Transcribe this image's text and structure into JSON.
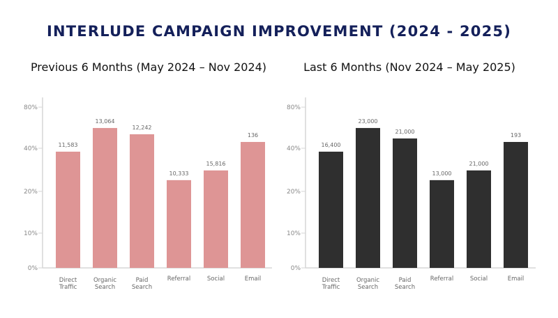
{
  "title": "INTERLUDE CAMPAIGN IMPROVEMENT (2024 - 2025)",
  "chart_data": [
    {
      "type": "bar",
      "title": "Previous 6 Months (May 2024 – Nov 2024)",
      "categories": [
        "Direct Traffic",
        "Organic Search",
        "Paid Search",
        "Referral",
        "Social",
        "Email"
      ],
      "values": [
        38.4,
        59.7,
        53.6,
        25.2,
        29.7,
        46.1
      ],
      "data_labels": [
        "11,583",
        "13,064",
        "12,242",
        "10,333",
        "15,816",
        "136"
      ],
      "yticks": [
        "0%",
        "10%",
        "20%",
        "40%",
        "80%"
      ],
      "ytick_values": [
        0,
        10,
        20,
        40,
        80
      ],
      "ylim": [
        0,
        80
      ],
      "grid": false,
      "color": "#de9595"
    },
    {
      "type": "bar",
      "title": "Last 6 Months (Nov 2024 – May 2025)",
      "categories": [
        "Direct Traffic",
        "Organic Search",
        "Paid Search",
        "Referral",
        "Social",
        "Email"
      ],
      "values": [
        38.4,
        59.7,
        49.5,
        25.2,
        29.7,
        46.1
      ],
      "data_labels": [
        "16,400",
        "23,000",
        "21,000",
        "13,000",
        "21,000",
        "193"
      ],
      "yticks": [
        "0%",
        "10%",
        "20%",
        "40%",
        "80%"
      ],
      "ytick_values": [
        0,
        10,
        20,
        40,
        80
      ],
      "ylim": [
        0,
        80
      ],
      "grid": false,
      "color": "#2f2f2f"
    }
  ]
}
